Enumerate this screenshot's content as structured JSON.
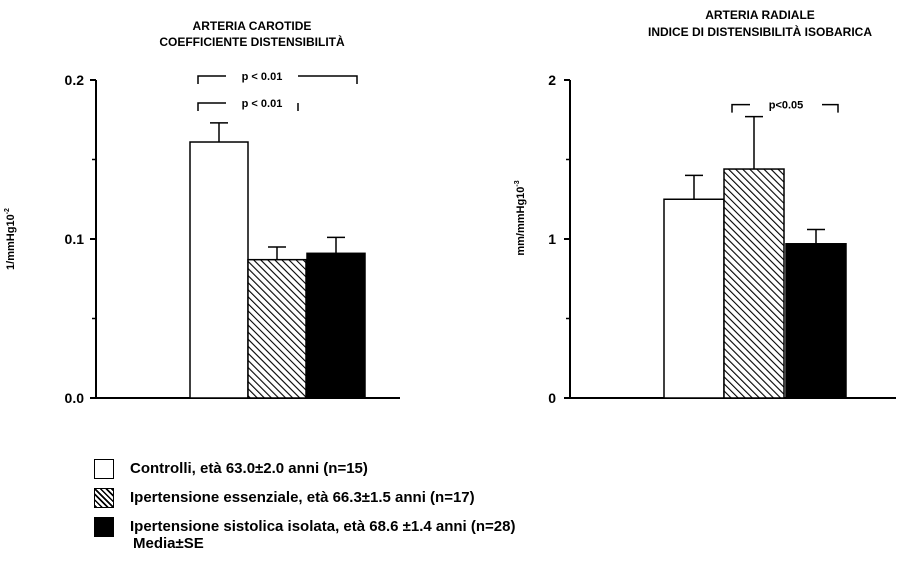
{
  "chart_data": [
    {
      "type": "bar",
      "title": "ARTERIA CAROTIDE",
      "subtitle": "COEFFICIENTE DISTENSIBILITÀ",
      "ylabel": "1/mmHg10",
      "ylabel_sup": "-2",
      "ylim": [
        0,
        0.2
      ],
      "yticks": [
        "0.0",
        "0.1",
        "0.2"
      ],
      "series": [
        {
          "name": "Controlli, età 63.0±2.0 anni (n=15)",
          "value": 0.161,
          "se": 0.012,
          "fill": "white"
        },
        {
          "name": "Ipertensione essenziale, età 66.3±1.5 anni (n=17)",
          "value": 0.087,
          "se": 0.008,
          "fill": "hatch"
        },
        {
          "name": "Ipertensione sistolica isolata, età 68.6 ±1.4 anni (n=28)",
          "value": 0.091,
          "se": 0.01,
          "fill": "black"
        }
      ],
      "annotations": [
        {
          "label": "p < 0.01",
          "from": 0,
          "to": 2,
          "y": 0.2
        },
        {
          "label": "p < 0.01",
          "from": 0,
          "to": 1,
          "y": 0.183
        }
      ]
    },
    {
      "type": "bar",
      "title": "ARTERIA RADIALE",
      "subtitle": "INDICE DI DISTENSIBILITÀ ISOBARICA",
      "ylabel": "mm/mmHg10",
      "ylabel_sup": "-3",
      "ylim": [
        0,
        2
      ],
      "yticks": [
        "0",
        "1",
        "2"
      ],
      "series": [
        {
          "name": "Controlli, età 63.0±2.0 anni (n=15)",
          "value": 1.25,
          "se": 0.15,
          "fill": "white"
        },
        {
          "name": "Ipertensione essenziale, età 66.3±1.5 anni (n=17)",
          "value": 1.44,
          "se": 0.33,
          "fill": "hatch"
        },
        {
          "name": "Ipertensione sistolica isolata, età 68.6 ±1.4 anni (n=28)",
          "value": 0.97,
          "se": 0.09,
          "fill": "black"
        }
      ],
      "annotations": [
        {
          "label": "p<0.05",
          "from": 1,
          "to": 2,
          "y": 1.82
        }
      ]
    }
  ],
  "legend": [
    {
      "label": "Controlli, età 63.0±2.0 anni (n=15)",
      "fill": "white"
    },
    {
      "label": "Ipertensione essenziale, età 66.3±1.5 anni (n=17)",
      "fill": "hatch"
    },
    {
      "label": "Ipertensione sistolica isolata, età 68.6 ±1.4 anni (n=28)",
      "fill": "black"
    }
  ],
  "note": "Media±SE"
}
